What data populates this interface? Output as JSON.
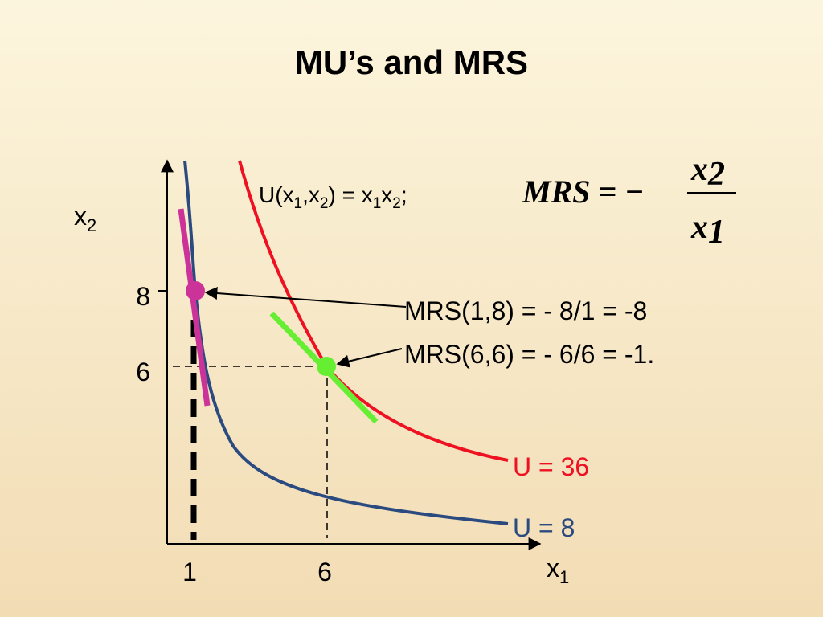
{
  "title": "MU’s and MRS",
  "axes": {
    "y_label": {
      "base": "x",
      "sub": "2"
    },
    "x_label": {
      "base": "x",
      "sub": "1"
    },
    "x_ticks": [
      "1",
      "6"
    ],
    "y_ticks": [
      "8",
      "6"
    ]
  },
  "utility_function": [
    "U(x",
    "1",
    ",x",
    "2",
    ") = x",
    "1",
    "x",
    "2",
    ";"
  ],
  "formula": {
    "lhs": "MRS = −",
    "numerator": {
      "base": "x",
      "sub": "2"
    },
    "denominator": {
      "base": "x",
      "sub": "1"
    }
  },
  "annotations": [
    "MRS(1,8) = - 8/1 = -8",
    "MRS(6,6) = - 6/6 = -1."
  ],
  "curves": [
    {
      "label": "U = 36"
    },
    {
      "label": "U = 8"
    }
  ]
}
